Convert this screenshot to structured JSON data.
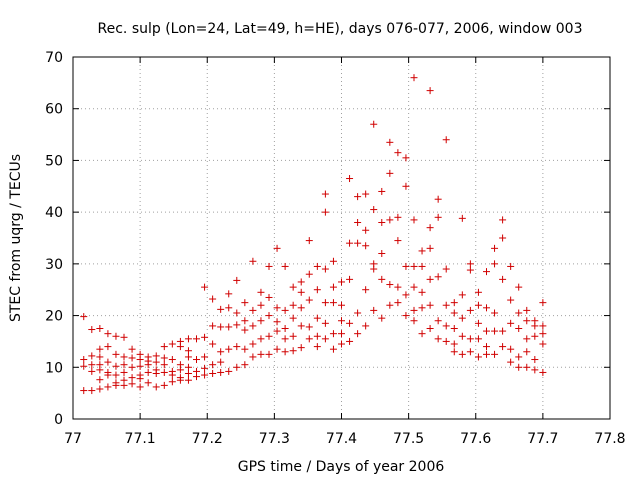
{
  "chart_data": {
    "type": "scatter",
    "title": "Rec. sulp (Lon=24, Lat=49, h=HE), days 076-077, 2006, window 003",
    "xlabel": "GPS time / Days of year 2006",
    "ylabel": "STEC from uqrg / TECUs",
    "xlim": [
      77,
      77.8
    ],
    "ylim": [
      0,
      70
    ],
    "xticks": [
      "77",
      "77.1",
      "77.2",
      "77.3",
      "77.4",
      "77.5",
      "77.6",
      "77.7",
      "77.8"
    ],
    "yticks": [
      "0",
      "10",
      "20",
      "30",
      "40",
      "50",
      "60",
      "70"
    ],
    "grid": true,
    "marker": "+",
    "color": "#d00000",
    "series": [
      {
        "name": "STEC",
        "points": [
          [
            77.016,
            19.8
          ],
          [
            77.016,
            11.5
          ],
          [
            77.016,
            10.2
          ],
          [
            77.016,
            5.5
          ],
          [
            77.028,
            17.3
          ],
          [
            77.028,
            12.2
          ],
          [
            77.028,
            10.5
          ],
          [
            77.028,
            9.2
          ],
          [
            77.028,
            5.5
          ],
          [
            77.04,
            17.5
          ],
          [
            77.04,
            13.5
          ],
          [
            77.04,
            12.0
          ],
          [
            77.04,
            10.5
          ],
          [
            77.04,
            9.5
          ],
          [
            77.04,
            7.6
          ],
          [
            77.04,
            5.8
          ],
          [
            77.052,
            16.5
          ],
          [
            77.052,
            14.0
          ],
          [
            77.052,
            11.0
          ],
          [
            77.052,
            9.0
          ],
          [
            77.052,
            8.5
          ],
          [
            77.052,
            6.2
          ],
          [
            77.064,
            16.0
          ],
          [
            77.064,
            12.5
          ],
          [
            77.064,
            10.2
          ],
          [
            77.064,
            8.5
          ],
          [
            77.064,
            7.0
          ],
          [
            77.064,
            6.5
          ],
          [
            77.076,
            15.8
          ],
          [
            77.076,
            12.0
          ],
          [
            77.076,
            10.5
          ],
          [
            77.076,
            9.0
          ],
          [
            77.076,
            7.5
          ],
          [
            77.076,
            6.5
          ],
          [
            77.088,
            13.5
          ],
          [
            77.088,
            11.8
          ],
          [
            77.088,
            10.0
          ],
          [
            77.088,
            8.0
          ],
          [
            77.088,
            6.8
          ],
          [
            77.1,
            12.5
          ],
          [
            77.1,
            11.5
          ],
          [
            77.1,
            10.2
          ],
          [
            77.1,
            8.5
          ],
          [
            77.1,
            7.8
          ],
          [
            77.1,
            6.2
          ],
          [
            77.112,
            12.0
          ],
          [
            77.112,
            11.2
          ],
          [
            77.112,
            10.5
          ],
          [
            77.112,
            9.0
          ],
          [
            77.112,
            7.0
          ],
          [
            77.124,
            12.2
          ],
          [
            77.124,
            11.0
          ],
          [
            77.124,
            9.5
          ],
          [
            77.124,
            8.8
          ],
          [
            77.124,
            6.2
          ],
          [
            77.136,
            14.0
          ],
          [
            77.136,
            11.8
          ],
          [
            77.136,
            10.5
          ],
          [
            77.136,
            9.0
          ],
          [
            77.136,
            6.5
          ],
          [
            77.148,
            14.5
          ],
          [
            77.148,
            11.5
          ],
          [
            77.148,
            9.2
          ],
          [
            77.148,
            8.5
          ],
          [
            77.148,
            7.2
          ],
          [
            77.16,
            15.0
          ],
          [
            77.16,
            14.0
          ],
          [
            77.16,
            10.5
          ],
          [
            77.16,
            9.5
          ],
          [
            77.16,
            8.0
          ],
          [
            77.16,
            7.5
          ],
          [
            77.172,
            15.5
          ],
          [
            77.172,
            13.2
          ],
          [
            77.172,
            12.0
          ],
          [
            77.172,
            10.0
          ],
          [
            77.172,
            8.8
          ],
          [
            77.172,
            7.5
          ],
          [
            77.184,
            15.5
          ],
          [
            77.184,
            11.5
          ],
          [
            77.184,
            9.2
          ],
          [
            77.184,
            8.2
          ],
          [
            77.196,
            25.5
          ],
          [
            77.196,
            15.8
          ],
          [
            77.196,
            12.0
          ],
          [
            77.196,
            9.8
          ],
          [
            77.196,
            8.5
          ],
          [
            77.208,
            23.2
          ],
          [
            77.208,
            18.0
          ],
          [
            77.208,
            14.5
          ],
          [
            77.208,
            10.5
          ],
          [
            77.208,
            8.8
          ],
          [
            77.22,
            21.2
          ],
          [
            77.22,
            17.8
          ],
          [
            77.22,
            13.0
          ],
          [
            77.22,
            11.0
          ],
          [
            77.22,
            9.0
          ],
          [
            77.232,
            24.2
          ],
          [
            77.232,
            21.5
          ],
          [
            77.232,
            17.8
          ],
          [
            77.232,
            13.5
          ],
          [
            77.232,
            9.2
          ],
          [
            77.244,
            26.8
          ],
          [
            77.244,
            20.5
          ],
          [
            77.244,
            18.2
          ],
          [
            77.244,
            14.0
          ],
          [
            77.244,
            10.0
          ],
          [
            77.256,
            22.5
          ],
          [
            77.256,
            19.0
          ],
          [
            77.256,
            17.2
          ],
          [
            77.256,
            13.5
          ],
          [
            77.256,
            10.5
          ],
          [
            77.268,
            30.5
          ],
          [
            77.268,
            21.0
          ],
          [
            77.268,
            18.0
          ],
          [
            77.268,
            14.5
          ],
          [
            77.268,
            12.0
          ],
          [
            77.28,
            24.5
          ],
          [
            77.28,
            22.0
          ],
          [
            77.28,
            19.0
          ],
          [
            77.28,
            15.5
          ],
          [
            77.28,
            12.5
          ],
          [
            77.292,
            29.5
          ],
          [
            77.292,
            23.5
          ],
          [
            77.292,
            20.0
          ],
          [
            77.292,
            16.0
          ],
          [
            77.292,
            12.5
          ],
          [
            77.304,
            33.0
          ],
          [
            77.304,
            21.5
          ],
          [
            77.304,
            18.8
          ],
          [
            77.304,
            17.0
          ],
          [
            77.304,
            13.5
          ],
          [
            77.316,
            29.5
          ],
          [
            77.316,
            21.0
          ],
          [
            77.316,
            17.5
          ],
          [
            77.316,
            15.5
          ],
          [
            77.316,
            13.0
          ],
          [
            77.328,
            25.5
          ],
          [
            77.328,
            22.0
          ],
          [
            77.328,
            19.5
          ],
          [
            77.328,
            16.0
          ],
          [
            77.328,
            13.2
          ],
          [
            77.34,
            26.5
          ],
          [
            77.34,
            24.5
          ],
          [
            77.34,
            21.5
          ],
          [
            77.34,
            18.0
          ],
          [
            77.34,
            13.8
          ],
          [
            77.352,
            34.5
          ],
          [
            77.352,
            28.0
          ],
          [
            77.352,
            23.0
          ],
          [
            77.352,
            17.8
          ],
          [
            77.352,
            15.5
          ],
          [
            77.364,
            29.5
          ],
          [
            77.364,
            25.0
          ],
          [
            77.364,
            19.5
          ],
          [
            77.364,
            16.0
          ],
          [
            77.364,
            14.0
          ],
          [
            77.376,
            43.5
          ],
          [
            77.376,
            40.0
          ],
          [
            77.376,
            29.0
          ],
          [
            77.376,
            22.5
          ],
          [
            77.376,
            18.5
          ],
          [
            77.376,
            15.5
          ],
          [
            77.388,
            30.5
          ],
          [
            77.388,
            25.5
          ],
          [
            77.388,
            22.5
          ],
          [
            77.388,
            16.5
          ],
          [
            77.388,
            13.5
          ],
          [
            77.4,
            26.5
          ],
          [
            77.4,
            22.0
          ],
          [
            77.4,
            19.0
          ],
          [
            77.4,
            16.5
          ],
          [
            77.4,
            14.5
          ],
          [
            77.412,
            46.5
          ],
          [
            77.412,
            34.0
          ],
          [
            77.412,
            27.0
          ],
          [
            77.412,
            18.5
          ],
          [
            77.412,
            15.0
          ],
          [
            77.424,
            43.0
          ],
          [
            77.424,
            38.0
          ],
          [
            77.424,
            34.0
          ],
          [
            77.424,
            20.5
          ],
          [
            77.424,
            16.5
          ],
          [
            77.436,
            43.5
          ],
          [
            77.436,
            36.5
          ],
          [
            77.436,
            33.5
          ],
          [
            77.436,
            25.0
          ],
          [
            77.436,
            18.0
          ],
          [
            77.448,
            57.0
          ],
          [
            77.448,
            40.5
          ],
          [
            77.448,
            30.0
          ],
          [
            77.448,
            29.0
          ],
          [
            77.448,
            21.0
          ],
          [
            77.46,
            44.0
          ],
          [
            77.46,
            38.0
          ],
          [
            77.46,
            32.0
          ],
          [
            77.46,
            27.0
          ],
          [
            77.46,
            19.5
          ],
          [
            77.472,
            53.5
          ],
          [
            77.472,
            47.5
          ],
          [
            77.472,
            38.5
          ],
          [
            77.472,
            26.0
          ],
          [
            77.472,
            22.0
          ],
          [
            77.484,
            51.5
          ],
          [
            77.484,
            39.0
          ],
          [
            77.484,
            34.5
          ],
          [
            77.484,
            25.5
          ],
          [
            77.484,
            22.5
          ],
          [
            77.496,
            50.5
          ],
          [
            77.496,
            45.0
          ],
          [
            77.496,
            29.5
          ],
          [
            77.496,
            24.0
          ],
          [
            77.496,
            20.0
          ],
          [
            77.508,
            66.0
          ],
          [
            77.508,
            38.5
          ],
          [
            77.508,
            29.5
          ],
          [
            77.508,
            25.5
          ],
          [
            77.508,
            21.0
          ],
          [
            77.508,
            19.0
          ],
          [
            77.52,
            32.5
          ],
          [
            77.52,
            29.5
          ],
          [
            77.52,
            24.5
          ],
          [
            77.52,
            21.5
          ],
          [
            77.52,
            16.5
          ],
          [
            77.532,
            63.5
          ],
          [
            77.532,
            37.0
          ],
          [
            77.532,
            33.0
          ],
          [
            77.532,
            27.0
          ],
          [
            77.532,
            22.0
          ],
          [
            77.532,
            17.5
          ],
          [
            77.544,
            42.5
          ],
          [
            77.544,
            39.0
          ],
          [
            77.544,
            27.5
          ],
          [
            77.544,
            19.0
          ],
          [
            77.544,
            15.5
          ],
          [
            77.556,
            54.0
          ],
          [
            77.556,
            29.0
          ],
          [
            77.556,
            22.0
          ],
          [
            77.556,
            18.0
          ],
          [
            77.556,
            15.0
          ],
          [
            77.568,
            22.5
          ],
          [
            77.568,
            20.5
          ],
          [
            77.568,
            17.5
          ],
          [
            77.568,
            14.5
          ],
          [
            77.568,
            13.0
          ],
          [
            77.58,
            38.8
          ],
          [
            77.58,
            24.0
          ],
          [
            77.58,
            19.5
          ],
          [
            77.58,
            16.0
          ],
          [
            77.58,
            12.5
          ],
          [
            77.592,
            30.0
          ],
          [
            77.592,
            28.8
          ],
          [
            77.592,
            21.0
          ],
          [
            77.592,
            15.5
          ],
          [
            77.592,
            13.0
          ],
          [
            77.604,
            24.5
          ],
          [
            77.604,
            22.0
          ],
          [
            77.604,
            18.5
          ],
          [
            77.604,
            15.5
          ],
          [
            77.604,
            12.0
          ],
          [
            77.616,
            28.5
          ],
          [
            77.616,
            21.5
          ],
          [
            77.616,
            17.0
          ],
          [
            77.616,
            14.0
          ],
          [
            77.616,
            12.5
          ],
          [
            77.628,
            33.0
          ],
          [
            77.628,
            30.0
          ],
          [
            77.628,
            20.5
          ],
          [
            77.628,
            17.0
          ],
          [
            77.628,
            12.5
          ],
          [
            77.64,
            38.5
          ],
          [
            77.64,
            35.0
          ],
          [
            77.64,
            27.0
          ],
          [
            77.64,
            17.0
          ],
          [
            77.64,
            14.0
          ],
          [
            77.652,
            29.5
          ],
          [
            77.652,
            23.0
          ],
          [
            77.652,
            18.5
          ],
          [
            77.652,
            13.5
          ],
          [
            77.652,
            11.0
          ],
          [
            77.664,
            25.5
          ],
          [
            77.664,
            20.5
          ],
          [
            77.664,
            17.5
          ],
          [
            77.664,
            12.0
          ],
          [
            77.664,
            10.0
          ],
          [
            77.676,
            21.0
          ],
          [
            77.676,
            19.0
          ],
          [
            77.676,
            15.5
          ],
          [
            77.676,
            13.0
          ],
          [
            77.676,
            10.0
          ],
          [
            77.688,
            19.0
          ],
          [
            77.688,
            18.0
          ],
          [
            77.688,
            16.0
          ],
          [
            77.688,
            11.5
          ],
          [
            77.688,
            9.5
          ],
          [
            77.7,
            22.5
          ],
          [
            77.7,
            18.0
          ],
          [
            77.7,
            16.5
          ],
          [
            77.7,
            14.5
          ],
          [
            77.7,
            9.0
          ]
        ]
      }
    ]
  }
}
